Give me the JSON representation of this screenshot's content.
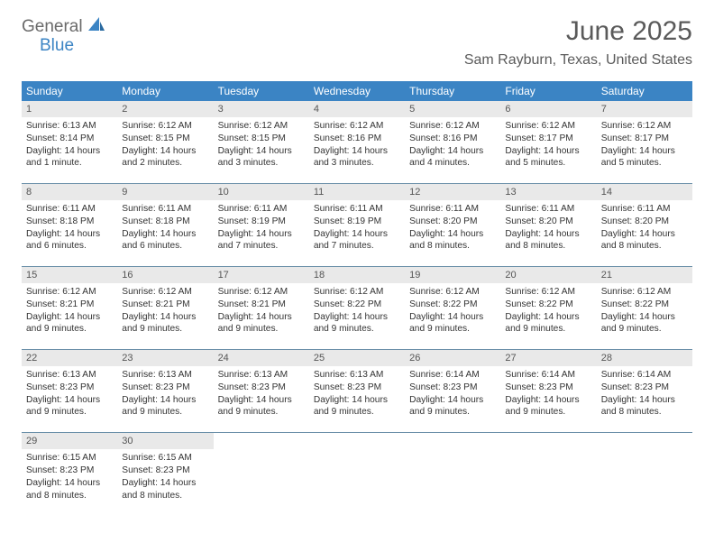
{
  "logo": {
    "text1": "General",
    "text2": "Blue"
  },
  "title": "June 2025",
  "location": "Sam Rayburn, Texas, United States",
  "dayNames": [
    "Sunday",
    "Monday",
    "Tuesday",
    "Wednesday",
    "Thursday",
    "Friday",
    "Saturday"
  ],
  "colors": {
    "headerBlue": "#3b84c4",
    "grayBand": "#e9e9e9",
    "weekRule": "#6a8fa8",
    "textGray": "#5a5a5a"
  },
  "weeks": [
    [
      {
        "n": "1",
        "sr": "Sunrise: 6:13 AM",
        "ss": "Sunset: 8:14 PM",
        "dl1": "Daylight: 14 hours",
        "dl2": "and 1 minute."
      },
      {
        "n": "2",
        "sr": "Sunrise: 6:12 AM",
        "ss": "Sunset: 8:15 PM",
        "dl1": "Daylight: 14 hours",
        "dl2": "and 2 minutes."
      },
      {
        "n": "3",
        "sr": "Sunrise: 6:12 AM",
        "ss": "Sunset: 8:15 PM",
        "dl1": "Daylight: 14 hours",
        "dl2": "and 3 minutes."
      },
      {
        "n": "4",
        "sr": "Sunrise: 6:12 AM",
        "ss": "Sunset: 8:16 PM",
        "dl1": "Daylight: 14 hours",
        "dl2": "and 3 minutes."
      },
      {
        "n": "5",
        "sr": "Sunrise: 6:12 AM",
        "ss": "Sunset: 8:16 PM",
        "dl1": "Daylight: 14 hours",
        "dl2": "and 4 minutes."
      },
      {
        "n": "6",
        "sr": "Sunrise: 6:12 AM",
        "ss": "Sunset: 8:17 PM",
        "dl1": "Daylight: 14 hours",
        "dl2": "and 5 minutes."
      },
      {
        "n": "7",
        "sr": "Sunrise: 6:12 AM",
        "ss": "Sunset: 8:17 PM",
        "dl1": "Daylight: 14 hours",
        "dl2": "and 5 minutes."
      }
    ],
    [
      {
        "n": "8",
        "sr": "Sunrise: 6:11 AM",
        "ss": "Sunset: 8:18 PM",
        "dl1": "Daylight: 14 hours",
        "dl2": "and 6 minutes."
      },
      {
        "n": "9",
        "sr": "Sunrise: 6:11 AM",
        "ss": "Sunset: 8:18 PM",
        "dl1": "Daylight: 14 hours",
        "dl2": "and 6 minutes."
      },
      {
        "n": "10",
        "sr": "Sunrise: 6:11 AM",
        "ss": "Sunset: 8:19 PM",
        "dl1": "Daylight: 14 hours",
        "dl2": "and 7 minutes."
      },
      {
        "n": "11",
        "sr": "Sunrise: 6:11 AM",
        "ss": "Sunset: 8:19 PM",
        "dl1": "Daylight: 14 hours",
        "dl2": "and 7 minutes."
      },
      {
        "n": "12",
        "sr": "Sunrise: 6:11 AM",
        "ss": "Sunset: 8:20 PM",
        "dl1": "Daylight: 14 hours",
        "dl2": "and 8 minutes."
      },
      {
        "n": "13",
        "sr": "Sunrise: 6:11 AM",
        "ss": "Sunset: 8:20 PM",
        "dl1": "Daylight: 14 hours",
        "dl2": "and 8 minutes."
      },
      {
        "n": "14",
        "sr": "Sunrise: 6:11 AM",
        "ss": "Sunset: 8:20 PM",
        "dl1": "Daylight: 14 hours",
        "dl2": "and 8 minutes."
      }
    ],
    [
      {
        "n": "15",
        "sr": "Sunrise: 6:12 AM",
        "ss": "Sunset: 8:21 PM",
        "dl1": "Daylight: 14 hours",
        "dl2": "and 9 minutes."
      },
      {
        "n": "16",
        "sr": "Sunrise: 6:12 AM",
        "ss": "Sunset: 8:21 PM",
        "dl1": "Daylight: 14 hours",
        "dl2": "and 9 minutes."
      },
      {
        "n": "17",
        "sr": "Sunrise: 6:12 AM",
        "ss": "Sunset: 8:21 PM",
        "dl1": "Daylight: 14 hours",
        "dl2": "and 9 minutes."
      },
      {
        "n": "18",
        "sr": "Sunrise: 6:12 AM",
        "ss": "Sunset: 8:22 PM",
        "dl1": "Daylight: 14 hours",
        "dl2": "and 9 minutes."
      },
      {
        "n": "19",
        "sr": "Sunrise: 6:12 AM",
        "ss": "Sunset: 8:22 PM",
        "dl1": "Daylight: 14 hours",
        "dl2": "and 9 minutes."
      },
      {
        "n": "20",
        "sr": "Sunrise: 6:12 AM",
        "ss": "Sunset: 8:22 PM",
        "dl1": "Daylight: 14 hours",
        "dl2": "and 9 minutes."
      },
      {
        "n": "21",
        "sr": "Sunrise: 6:12 AM",
        "ss": "Sunset: 8:22 PM",
        "dl1": "Daylight: 14 hours",
        "dl2": "and 9 minutes."
      }
    ],
    [
      {
        "n": "22",
        "sr": "Sunrise: 6:13 AM",
        "ss": "Sunset: 8:23 PM",
        "dl1": "Daylight: 14 hours",
        "dl2": "and 9 minutes."
      },
      {
        "n": "23",
        "sr": "Sunrise: 6:13 AM",
        "ss": "Sunset: 8:23 PM",
        "dl1": "Daylight: 14 hours",
        "dl2": "and 9 minutes."
      },
      {
        "n": "24",
        "sr": "Sunrise: 6:13 AM",
        "ss": "Sunset: 8:23 PM",
        "dl1": "Daylight: 14 hours",
        "dl2": "and 9 minutes."
      },
      {
        "n": "25",
        "sr": "Sunrise: 6:13 AM",
        "ss": "Sunset: 8:23 PM",
        "dl1": "Daylight: 14 hours",
        "dl2": "and 9 minutes."
      },
      {
        "n": "26",
        "sr": "Sunrise: 6:14 AM",
        "ss": "Sunset: 8:23 PM",
        "dl1": "Daylight: 14 hours",
        "dl2": "and 9 minutes."
      },
      {
        "n": "27",
        "sr": "Sunrise: 6:14 AM",
        "ss": "Sunset: 8:23 PM",
        "dl1": "Daylight: 14 hours",
        "dl2": "and 9 minutes."
      },
      {
        "n": "28",
        "sr": "Sunrise: 6:14 AM",
        "ss": "Sunset: 8:23 PM",
        "dl1": "Daylight: 14 hours",
        "dl2": "and 8 minutes."
      }
    ],
    [
      {
        "n": "29",
        "sr": "Sunrise: 6:15 AM",
        "ss": "Sunset: 8:23 PM",
        "dl1": "Daylight: 14 hours",
        "dl2": "and 8 minutes."
      },
      {
        "n": "30",
        "sr": "Sunrise: 6:15 AM",
        "ss": "Sunset: 8:23 PM",
        "dl1": "Daylight: 14 hours",
        "dl2": "and 8 minutes."
      },
      {
        "empty": true
      },
      {
        "empty": true
      },
      {
        "empty": true
      },
      {
        "empty": true
      },
      {
        "empty": true
      }
    ]
  ]
}
